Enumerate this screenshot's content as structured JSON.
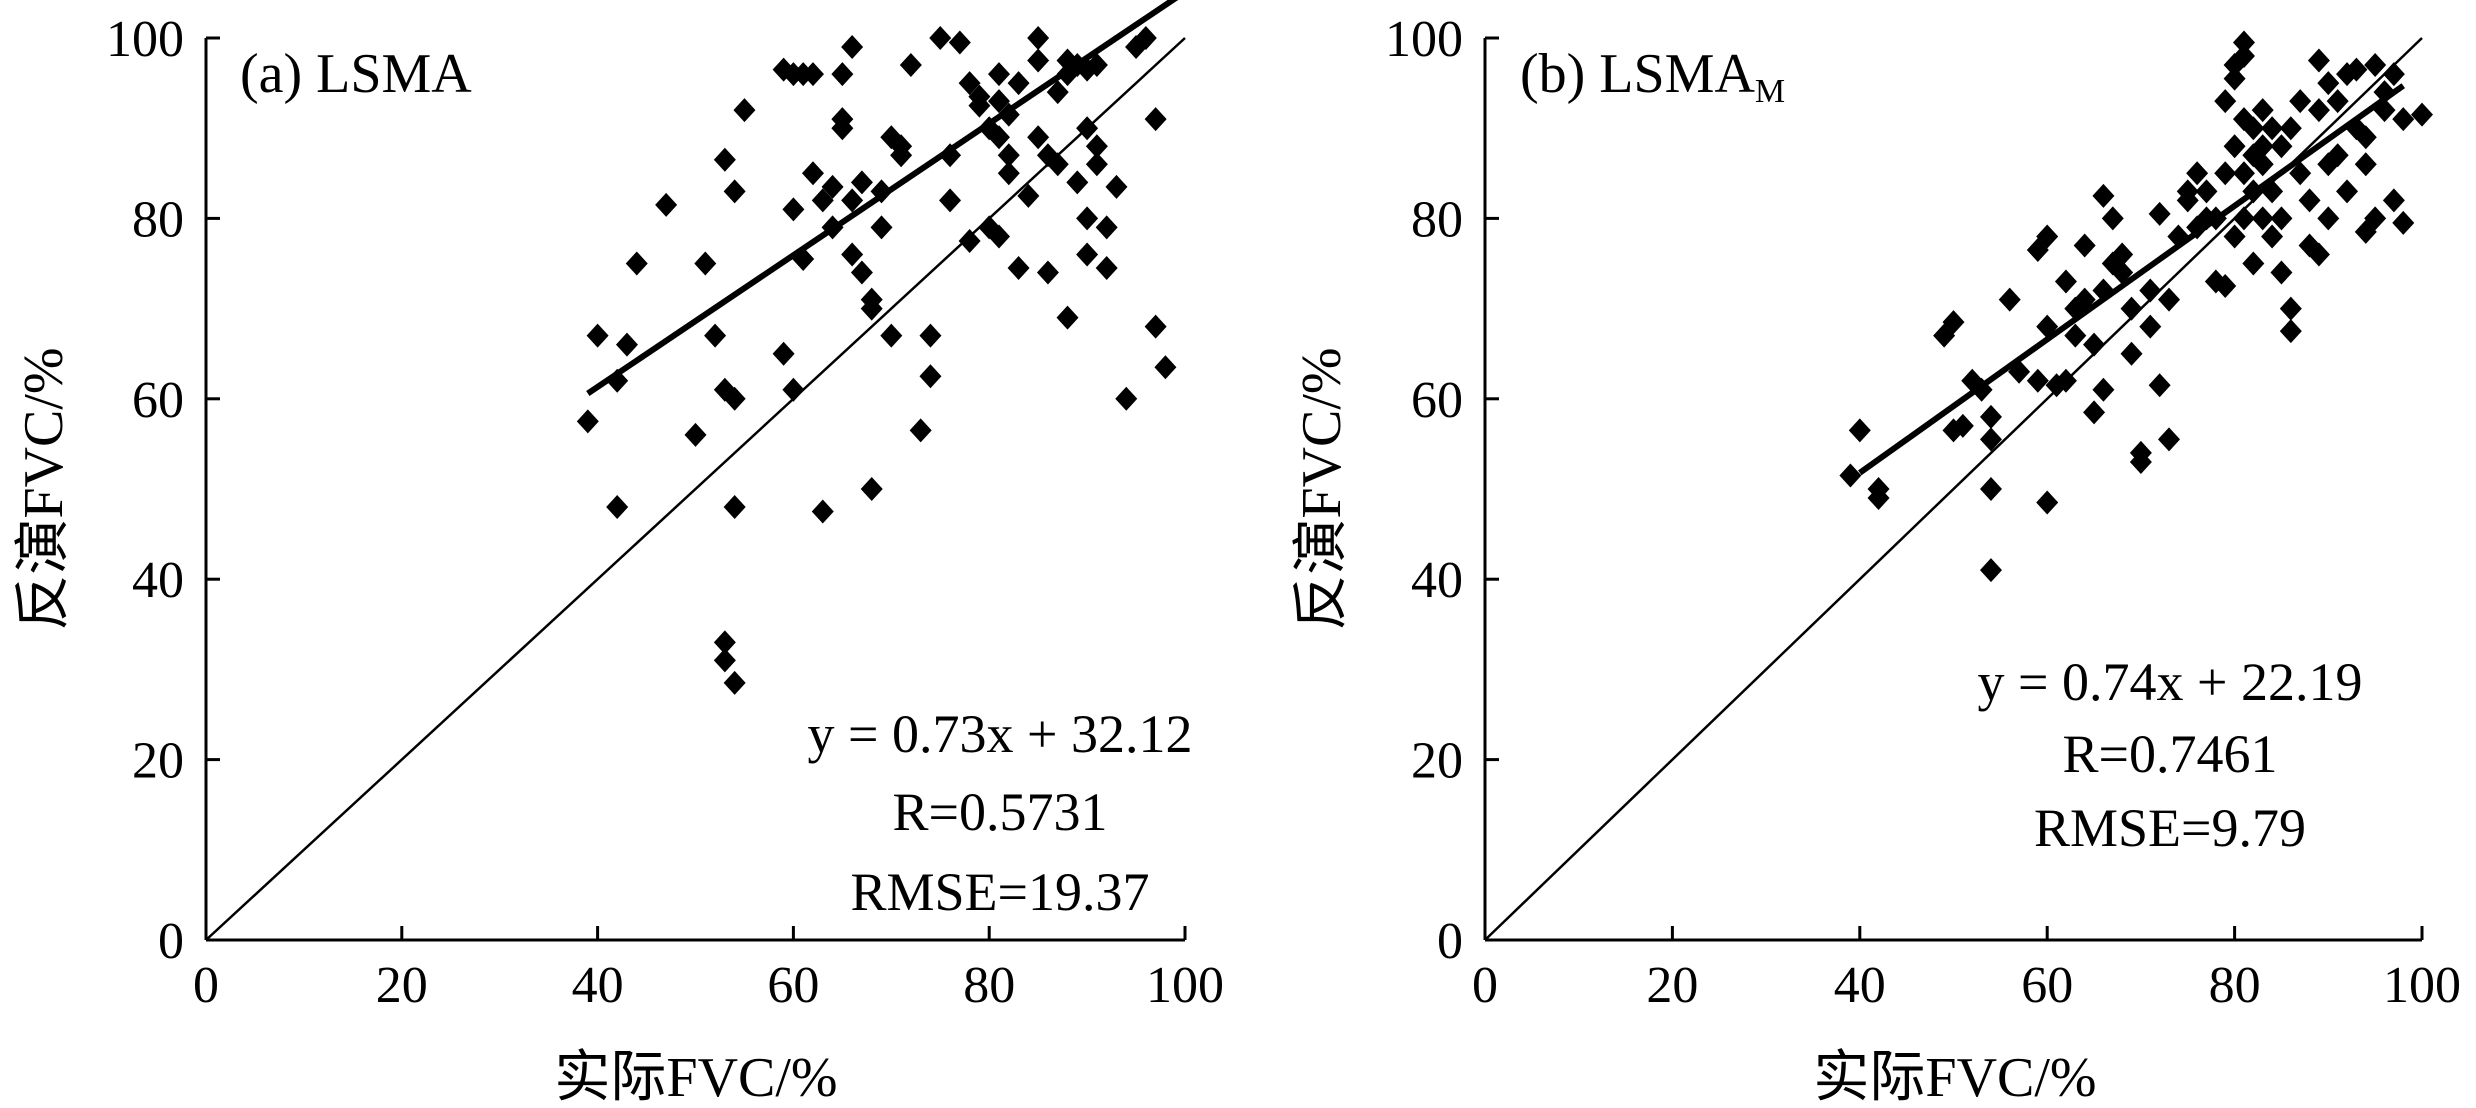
{
  "chart_data": [
    {
      "type": "scatter",
      "panel_label": "(a) LSMA",
      "title": "(a) LSMA",
      "xlabel": "实际FVC/%",
      "ylabel": "反演FVC/%",
      "xlim": [
        0,
        100
      ],
      "ylim": [
        0,
        100
      ],
      "xticks": [
        "0",
        "20",
        "40",
        "60",
        "80",
        "100"
      ],
      "yticks": [
        "0",
        "20",
        "40",
        "60",
        "80",
        "100"
      ],
      "one_to_one_line": true,
      "fit": {
        "slope": 0.73,
        "intercept": 32.12,
        "x_range": [
          39,
          100
        ]
      },
      "equation": "y = 0.73x + 32.12",
      "r_text": "R=0.5731",
      "rmse_text": "RMSE=19.37",
      "points": [
        [
          39,
          57.5
        ],
        [
          40,
          67
        ],
        [
          42,
          62
        ],
        [
          42,
          48
        ],
        [
          43,
          66
        ],
        [
          44,
          75
        ],
        [
          47,
          81.5
        ],
        [
          50,
          56
        ],
        [
          51,
          75
        ],
        [
          52,
          67
        ],
        [
          53,
          61
        ],
        [
          53,
          86.5
        ],
        [
          54,
          83
        ],
        [
          54,
          60
        ],
        [
          54,
          48
        ],
        [
          55,
          92
        ],
        [
          53,
          33
        ],
        [
          53,
          31
        ],
        [
          54,
          28.5
        ],
        [
          59,
          96.5
        ],
        [
          59,
          65
        ],
        [
          60,
          96
        ],
        [
          60,
          81
        ],
        [
          60,
          61
        ],
        [
          61,
          96
        ],
        [
          61,
          75.5
        ],
        [
          62,
          96
        ],
        [
          62,
          85
        ],
        [
          63,
          82
        ],
        [
          63,
          47.5
        ],
        [
          64,
          83.5
        ],
        [
          64,
          79
        ],
        [
          65,
          91
        ],
        [
          65,
          90
        ],
        [
          65,
          96
        ],
        [
          66,
          99
        ],
        [
          66,
          82
        ],
        [
          66,
          76
        ],
        [
          67,
          84
        ],
        [
          67,
          74
        ],
        [
          68,
          71
        ],
        [
          68,
          70
        ],
        [
          68,
          50
        ],
        [
          69,
          83
        ],
        [
          69,
          79
        ],
        [
          70,
          89
        ],
        [
          70,
          67
        ],
        [
          71,
          88
        ],
        [
          71,
          87
        ],
        [
          72,
          97
        ],
        [
          73,
          56.5
        ],
        [
          74,
          67
        ],
        [
          74,
          62.5
        ],
        [
          75,
          100
        ],
        [
          76,
          82
        ],
        [
          76,
          87
        ],
        [
          77,
          99.5
        ],
        [
          78,
          95
        ],
        [
          78,
          77.5
        ],
        [
          79,
          93.5
        ],
        [
          79,
          92.5
        ],
        [
          80,
          90
        ],
        [
          80,
          79
        ],
        [
          81,
          96
        ],
        [
          81,
          93
        ],
        [
          81,
          89
        ],
        [
          81,
          78
        ],
        [
          82,
          85
        ],
        [
          82,
          87
        ],
        [
          82,
          91.5
        ],
        [
          83,
          95
        ],
        [
          83,
          74.5
        ],
        [
          84,
          82.5
        ],
        [
          85,
          100
        ],
        [
          85,
          97.5
        ],
        [
          85,
          89
        ],
        [
          86,
          87
        ],
        [
          86,
          74
        ],
        [
          87,
          86
        ],
        [
          87,
          94
        ],
        [
          88,
          96
        ],
        [
          88,
          97.5
        ],
        [
          88,
          69
        ],
        [
          89,
          97
        ],
        [
          89,
          84
        ],
        [
          90,
          96.5
        ],
        [
          90,
          90
        ],
        [
          90,
          80
        ],
        [
          90,
          76
        ],
        [
          91,
          97
        ],
        [
          91,
          86
        ],
        [
          91,
          88
        ],
        [
          92,
          79
        ],
        [
          92,
          74.5
        ],
        [
          93,
          83.5
        ],
        [
          94,
          60
        ],
        [
          95,
          99
        ],
        [
          96,
          100
        ],
        [
          97,
          91
        ],
        [
          97,
          68
        ],
        [
          98,
          63.5
        ]
      ]
    },
    {
      "type": "scatter",
      "panel_label": "(b) LSMA",
      "panel_label_sub": "M",
      "title": "(b) LSMAM",
      "xlabel": "实际FVC/%",
      "ylabel": "反演FVC/%",
      "xlim": [
        0,
        100
      ],
      "ylim": [
        0,
        100
      ],
      "xticks": [
        "0",
        "20",
        "40",
        "60",
        "80",
        "100"
      ],
      "yticks": [
        "0",
        "20",
        "40",
        "60",
        "80",
        "100"
      ],
      "one_to_one_line": true,
      "fit": {
        "slope": 0.74,
        "intercept": 22.19,
        "x_range": [
          40,
          98
        ]
      },
      "equation": "y = 0.74x + 22.19",
      "r_text": "R=0.7461",
      "rmse_text": "RMSE=9.79",
      "points": [
        [
          39,
          51.5
        ],
        [
          40,
          56.5
        ],
        [
          42,
          49
        ],
        [
          42,
          50
        ],
        [
          49,
          67
        ],
        [
          50,
          68.5
        ],
        [
          50,
          56.5
        ],
        [
          51,
          57
        ],
        [
          52,
          62
        ],
        [
          53,
          61
        ],
        [
          54,
          41
        ],
        [
          54,
          50
        ],
        [
          54,
          55.5
        ],
        [
          54,
          58
        ],
        [
          56,
          71
        ],
        [
          57,
          63
        ],
        [
          59,
          76.5
        ],
        [
          59,
          62
        ],
        [
          60,
          78
        ],
        [
          60,
          48.5
        ],
        [
          60,
          68
        ],
        [
          61,
          61.5
        ],
        [
          62,
          62
        ],
        [
          62,
          73
        ],
        [
          63,
          70
        ],
        [
          63,
          67
        ],
        [
          64,
          71
        ],
        [
          64,
          77
        ],
        [
          65,
          58.5
        ],
        [
          65,
          66
        ],
        [
          66,
          82.5
        ],
        [
          66,
          72
        ],
        [
          66,
          61
        ],
        [
          67,
          75
        ],
        [
          67,
          80
        ],
        [
          68,
          76
        ],
        [
          68,
          74
        ],
        [
          69,
          70
        ],
        [
          69,
          65
        ],
        [
          70,
          54
        ],
        [
          70,
          53
        ],
        [
          71,
          72
        ],
        [
          71,
          68
        ],
        [
          72,
          80.5
        ],
        [
          72,
          61.5
        ],
        [
          73,
          55.5
        ],
        [
          73,
          71
        ],
        [
          74,
          78
        ],
        [
          75,
          83
        ],
        [
          75,
          82
        ],
        [
          76,
          79
        ],
        [
          76,
          85
        ],
        [
          77,
          83
        ],
        [
          77,
          80
        ],
        [
          78,
          73
        ],
        [
          78,
          80
        ],
        [
          79,
          72.5
        ],
        [
          79,
          85
        ],
        [
          79,
          93
        ],
        [
          80,
          95.5
        ],
        [
          80,
          97
        ],
        [
          80,
          78
        ],
        [
          80,
          88
        ],
        [
          81,
          99.5
        ],
        [
          81,
          98
        ],
        [
          81,
          91
        ],
        [
          81,
          85
        ],
        [
          81,
          80
        ],
        [
          82,
          90
        ],
        [
          82,
          87
        ],
        [
          82,
          83
        ],
        [
          82,
          75
        ],
        [
          83,
          92
        ],
        [
          83,
          88
        ],
        [
          83,
          86
        ],
        [
          83,
          80
        ],
        [
          84,
          90
        ],
        [
          84,
          83
        ],
        [
          84,
          78
        ],
        [
          85,
          88
        ],
        [
          85,
          80
        ],
        [
          85,
          74
        ],
        [
          86,
          70
        ],
        [
          86,
          67.5
        ],
        [
          86,
          90
        ],
        [
          87,
          93
        ],
        [
          87,
          85
        ],
        [
          88,
          82
        ],
        [
          88,
          77
        ],
        [
          89,
          97.5
        ],
        [
          89,
          92
        ],
        [
          89,
          76
        ],
        [
          90,
          95
        ],
        [
          90,
          86
        ],
        [
          90,
          80
        ],
        [
          91,
          93
        ],
        [
          91,
          87
        ],
        [
          92,
          96
        ],
        [
          92,
          83
        ],
        [
          93,
          96.5
        ],
        [
          93,
          90
        ],
        [
          94,
          89
        ],
        [
          94,
          86
        ],
        [
          94,
          78.5
        ],
        [
          95,
          97
        ],
        [
          95,
          80
        ],
        [
          96,
          94
        ],
        [
          96,
          92
        ],
        [
          97,
          96
        ],
        [
          97,
          82
        ],
        [
          98,
          79.5
        ],
        [
          98,
          91
        ],
        [
          100,
          91.5
        ]
      ]
    }
  ]
}
